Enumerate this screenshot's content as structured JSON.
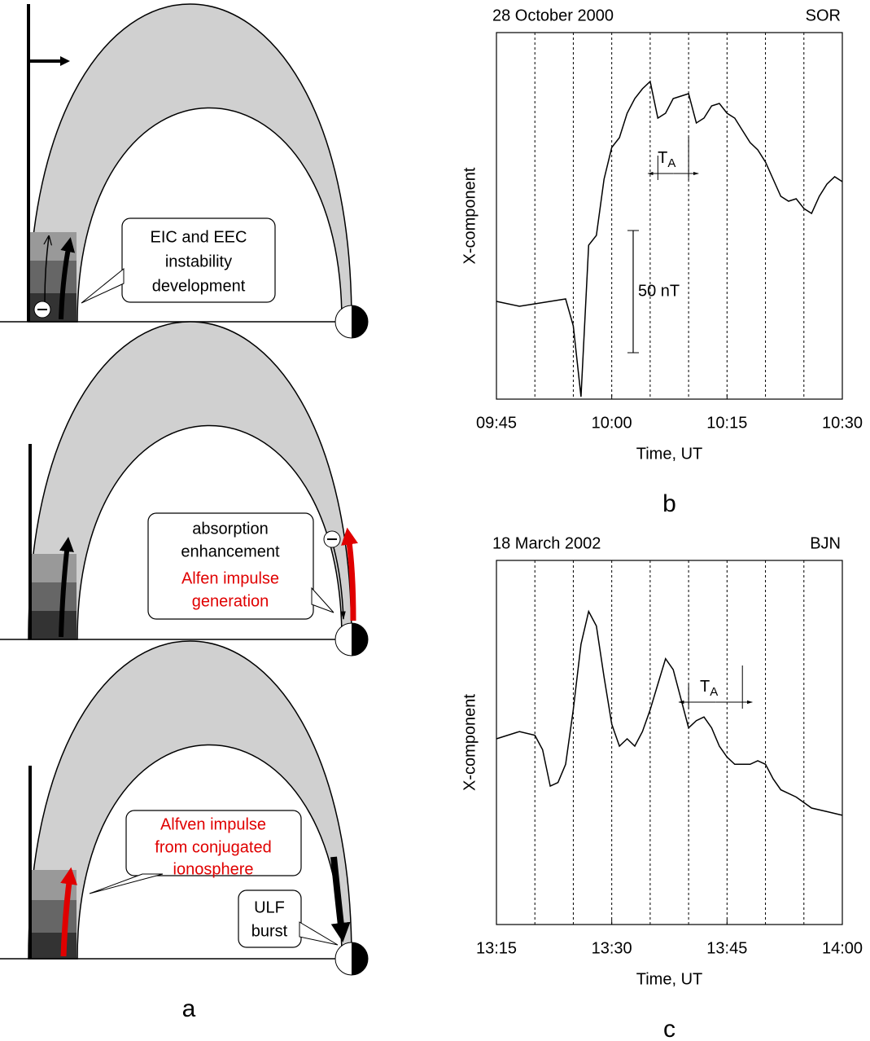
{
  "figure_a": {
    "label": "a",
    "top": {
      "callout": [
        "EIC and EEC",
        "instability",
        "development"
      ]
    },
    "middle": {
      "callout_black": [
        "absorption",
        "enhancement"
      ],
      "callout_red": [
        "Alfen impulse",
        "generation"
      ]
    },
    "bottom": {
      "callout_red": [
        "Alfven impulse",
        "from conjugated",
        "ionosphere"
      ],
      "callout_black": [
        "ULF",
        "burst"
      ]
    }
  },
  "chart_data": [
    {
      "type": "line",
      "title": "28 October 2000",
      "station": "SOR",
      "x_label": "Time, UT",
      "y_label": "X-component",
      "panel_label": "b",
      "color": "#000000",
      "x": [
        "09:45",
        "09:48",
        "09:52",
        "09:54",
        "09:55",
        "09:56",
        "09:57",
        "09:58",
        "09:59",
        "10:00",
        "10:01",
        "10:02",
        "10:03",
        "10:04",
        "10:05",
        "10:06",
        "10:07",
        "10:08",
        "10:09",
        "10:10",
        "10:11",
        "10:12",
        "10:13",
        "10:14",
        "10:15",
        "10:16",
        "10:17",
        "10:18",
        "10:19",
        "10:20",
        "10:21",
        "10:22",
        "10:23",
        "10:24",
        "10:25",
        "10:26",
        "10:27",
        "10:28",
        "10:29",
        "10:30"
      ],
      "values": [
        40,
        38,
        40,
        41,
        30,
        1,
        63,
        67,
        90,
        103,
        107,
        117,
        123,
        127,
        130,
        115,
        117,
        123,
        124,
        125,
        113,
        115,
        120,
        121,
        117,
        115,
        110,
        105,
        102,
        97,
        90,
        83,
        81,
        82,
        78,
        76,
        83,
        88,
        91,
        89
      ],
      "xlim": [
        "09:45",
        "10:30"
      ],
      "xticks": [
        "09:45",
        "10:00",
        "10:15",
        "10:30"
      ],
      "xgrid": [
        "09:50",
        "09:55",
        "10:00",
        "10:05",
        "10:10",
        "10:15",
        "10:20",
        "10:25"
      ],
      "ylim": [
        0,
        150
      ],
      "period": {
        "text": "T",
        "subscript": "A",
        "x": [
          "10:06",
          "10:10"
        ]
      },
      "scale_bar": {
        "label": "50 nT",
        "value": 50
      }
    },
    {
      "type": "line",
      "title": "18 March 2002",
      "station": "BJN",
      "x_label": "Time, UT",
      "y_label": "X-component",
      "panel_label": "c",
      "color": "#000000",
      "x": [
        "13:15",
        "13:18",
        "13:20",
        "13:21",
        "13:22",
        "13:23",
        "13:24",
        "13:25",
        "13:26",
        "13:27",
        "13:28",
        "13:29",
        "13:30",
        "13:31",
        "13:32",
        "13:33",
        "13:34",
        "13:35",
        "13:36",
        "13:37",
        "13:38",
        "13:39",
        "13:40",
        "13:41",
        "13:42",
        "13:43",
        "13:44",
        "13:45",
        "13:46",
        "13:47",
        "13:48",
        "13:49",
        "13:50",
        "13:51",
        "13:52",
        "13:54",
        "13:56",
        "13:58",
        "14:00"
      ],
      "values": [
        51,
        53,
        52,
        48,
        38,
        39,
        44,
        59,
        77,
        86,
        82,
        68,
        55,
        49,
        51,
        49,
        53,
        59,
        66,
        73,
        70,
        62,
        54,
        56,
        57,
        54,
        49,
        46,
        44,
        44,
        44,
        45,
        44,
        40,
        37,
        35,
        32,
        31,
        30
      ],
      "xlim": [
        "13:15",
        "14:00"
      ],
      "xticks": [
        "13:15",
        "13:30",
        "13:45",
        "14:00"
      ],
      "xgrid": [
        "13:20",
        "13:25",
        "13:30",
        "13:35",
        "13:40",
        "13:45",
        "13:50",
        "13:55"
      ],
      "ylim": [
        0,
        100
      ],
      "period": {
        "text": "T",
        "subscript": "A",
        "x": [
          "13:40",
          "13:47"
        ]
      }
    }
  ]
}
